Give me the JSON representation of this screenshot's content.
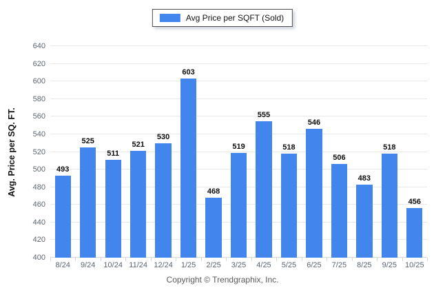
{
  "chart_data": {
    "type": "bar",
    "title": "",
    "legend": "Avg Price per SQFT (Sold)",
    "legend_position": "top-center",
    "xlabel": "",
    "ylabel": "Avg. Price per SQ. FT.",
    "categories": [
      "8/24",
      "9/24",
      "10/24",
      "11/24",
      "12/24",
      "1/25",
      "2/25",
      "3/25",
      "4/25",
      "5/25",
      "6/25",
      "7/25",
      "8/25",
      "9/25",
      "10/25"
    ],
    "values": [
      493,
      525,
      511,
      521,
      530,
      603,
      468,
      519,
      555,
      518,
      546,
      506,
      483,
      518,
      456
    ],
    "ylim": [
      400,
      640
    ],
    "ytick_step": 20,
    "grid": true,
    "bar_color": "#4285EC"
  },
  "colors": {
    "bar": "#4285EC",
    "gridline": "#e8e8e8",
    "axis_text": "#5a6470",
    "value_label": "#0d0d0d"
  },
  "footer": {
    "copyright": "Copyright © Trendgraphix, Inc."
  }
}
